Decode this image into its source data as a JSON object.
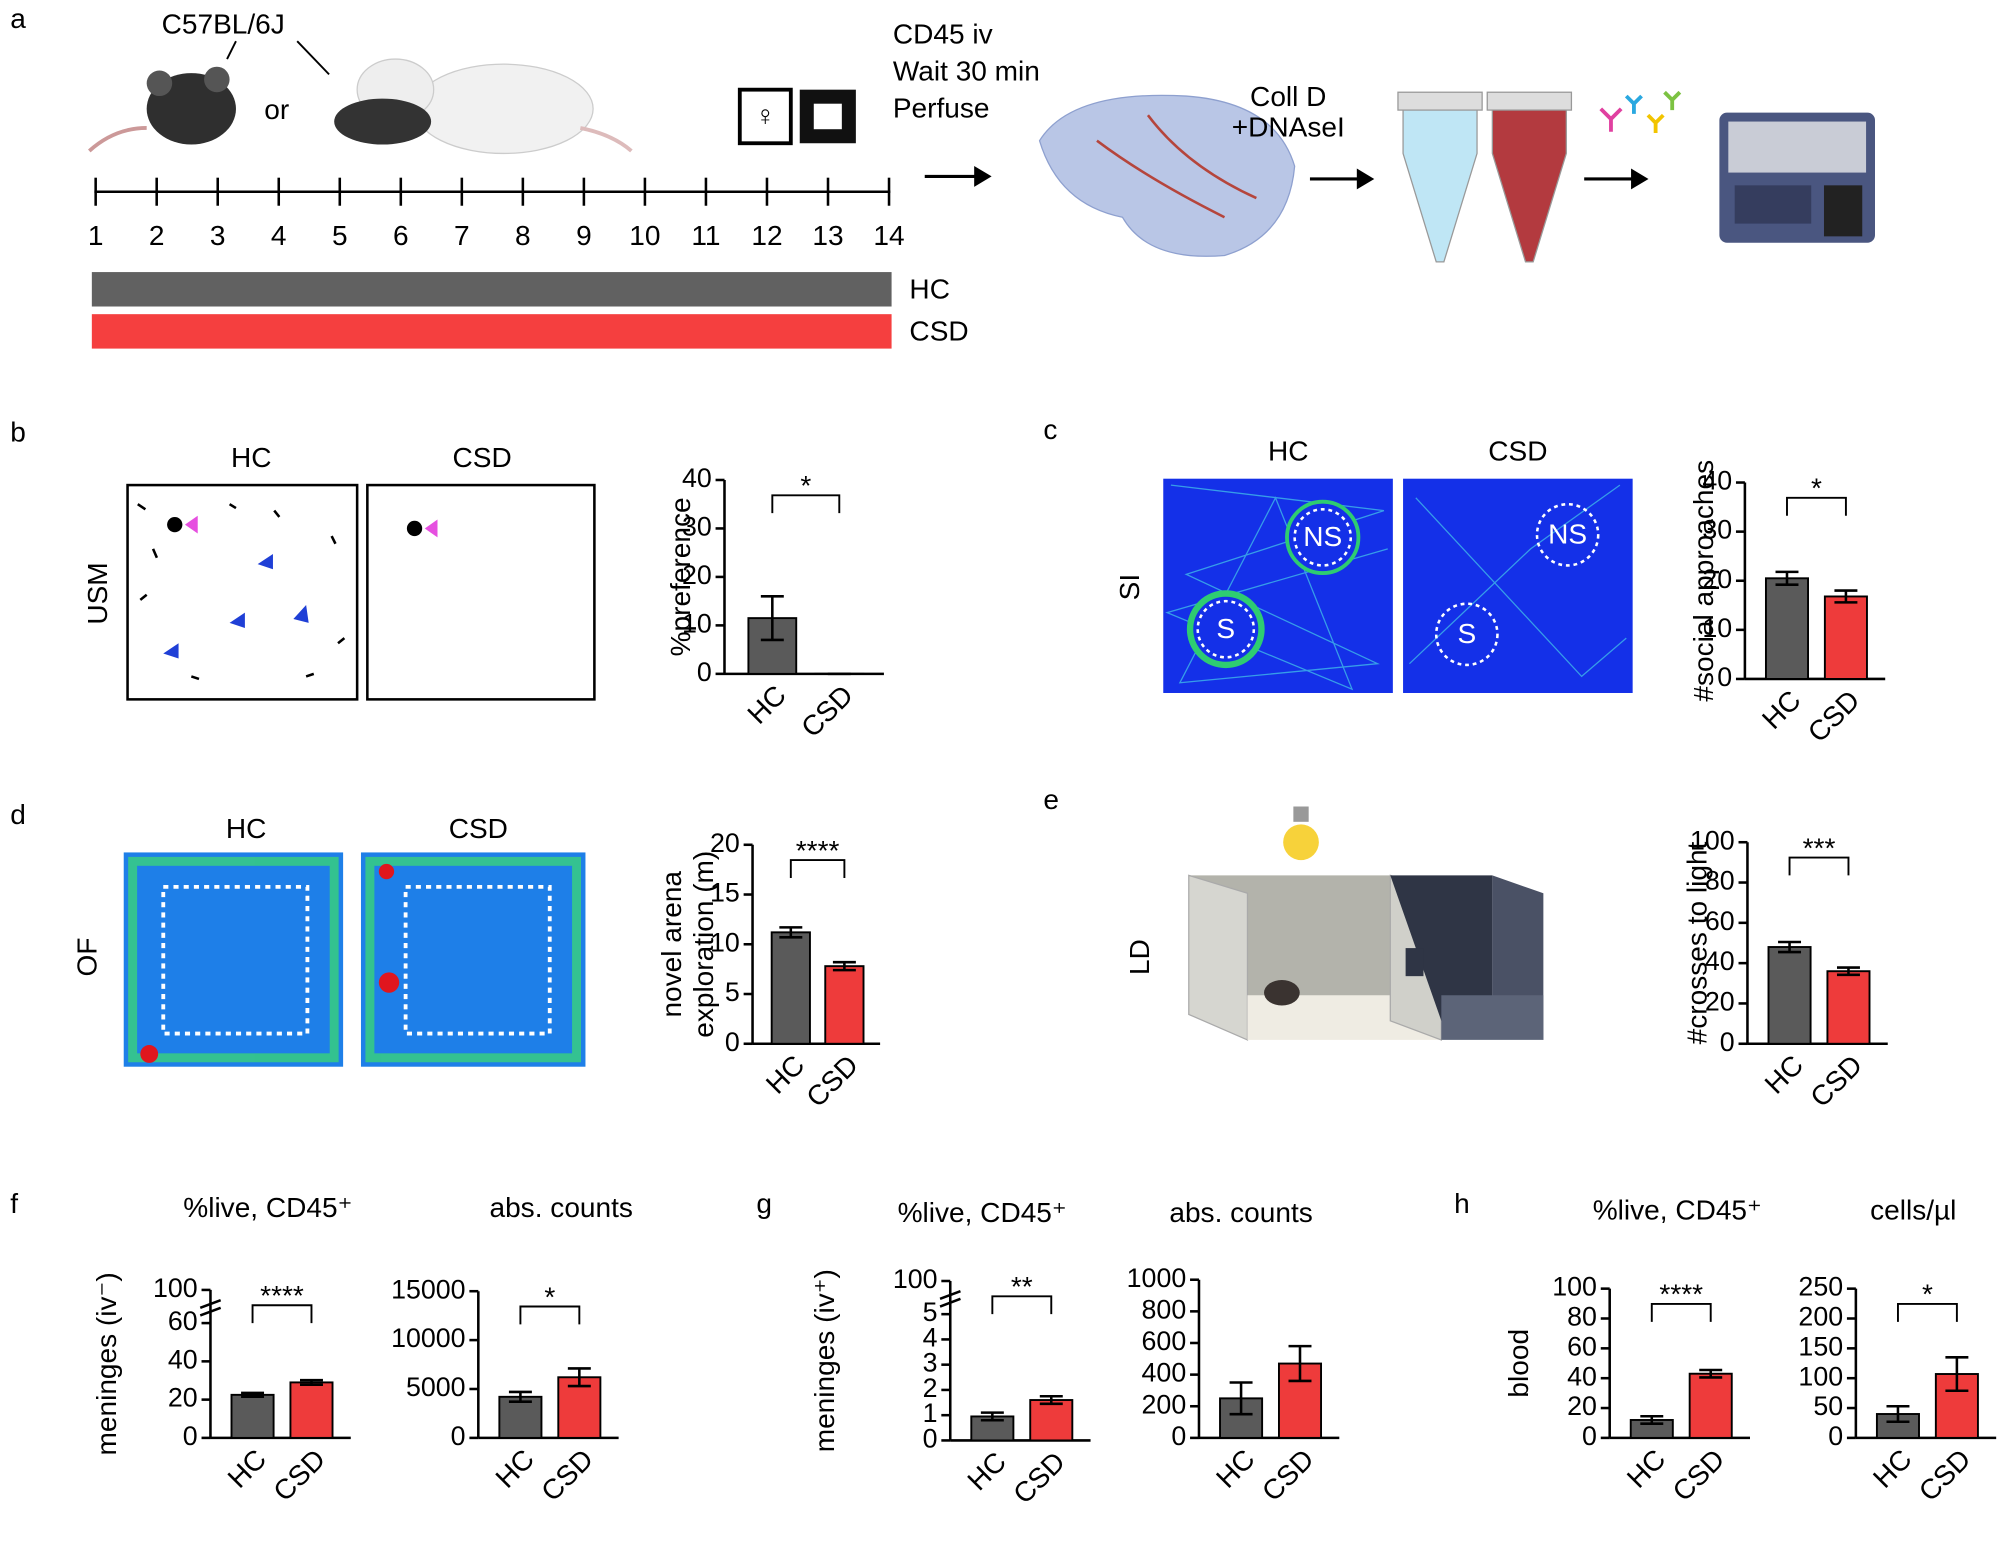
{
  "panel_labels": [
    "a",
    "b",
    "c",
    "d",
    "e",
    "f",
    "g",
    "h"
  ],
  "panel_a": {
    "strain": "C57BL/6J",
    "or": "or",
    "steps": [
      "CD45 iv",
      "Wait 30 min",
      "Perfuse"
    ],
    "digest": [
      "Coll D",
      "+DNAseI"
    ],
    "timeline": [
      1,
      2,
      3,
      4,
      5,
      6,
      7,
      8,
      9,
      10,
      11,
      12,
      13,
      14
    ],
    "groups": [
      {
        "name": "HC",
        "color": "#616161"
      },
      {
        "name": "CSD",
        "color": "#f53f3f"
      }
    ]
  },
  "panel_b": {
    "columns": [
      "HC",
      "CSD"
    ],
    "test": "USM"
  },
  "panel_c": {
    "columns": [
      "HC",
      "CSD"
    ],
    "test": "SI",
    "zones": [
      "NS",
      "S"
    ]
  },
  "panel_d": {
    "columns": [
      "HC",
      "CSD"
    ],
    "test": "OF"
  },
  "panel_e": {
    "test": "LD"
  },
  "chart_data": [
    {
      "type": "bar",
      "ylabel": "%preference",
      "categories": [
        "HC",
        "CSD"
      ],
      "values": [
        11.5,
        0
      ],
      "errors": [
        4.5,
        0
      ],
      "colors": [
        "#5a5a5a",
        "#ee3b3b"
      ],
      "ylim": [
        0,
        40
      ],
      "yticks": [
        0,
        10,
        20,
        30,
        40
      ],
      "significance": "*"
    },
    {
      "type": "bar",
      "ylabel": "#social approaches",
      "categories": [
        "HC",
        "CSD"
      ],
      "values": [
        20.5,
        16.8
      ],
      "errors": [
        1.3,
        1.2
      ],
      "colors": [
        "#5a5a5a",
        "#ee3b3b"
      ],
      "ylim": [
        0,
        40
      ],
      "yticks": [
        0,
        10,
        20,
        30,
        40
      ],
      "significance": "*"
    },
    {
      "type": "bar",
      "ylabel": [
        "novel arena",
        "exploration (m)"
      ],
      "categories": [
        "HC",
        "CSD"
      ],
      "values": [
        11.2,
        7.8
      ],
      "errors": [
        0.5,
        0.4
      ],
      "colors": [
        "#5a5a5a",
        "#ee3b3b"
      ],
      "ylim": [
        0,
        20
      ],
      "yticks": [
        0,
        5,
        10,
        15,
        20
      ],
      "significance": "****"
    },
    {
      "type": "bar",
      "ylabel": "#crosses to light",
      "categories": [
        "HC",
        "CSD"
      ],
      "values": [
        48,
        36
      ],
      "errors": [
        2.5,
        1.8
      ],
      "colors": [
        "#5a5a5a",
        "#ee3b3b"
      ],
      "ylim": [
        0,
        100
      ],
      "yticks": [
        0,
        20,
        40,
        60,
        80,
        100
      ],
      "significance": "***"
    },
    {
      "type": "bar",
      "title": "%live, CD45⁺",
      "ylabel": "meninges (iv⁻)",
      "categories": [
        "HC",
        "CSD"
      ],
      "values": [
        22.5,
        29
      ],
      "errors": [
        1,
        1.2
      ],
      "colors": [
        "#5a5a5a",
        "#ee3b3b"
      ],
      "ylim": [
        0,
        60
      ],
      "yticks": [
        0,
        20,
        40,
        60
      ],
      "break_label": "100",
      "significance": "****"
    },
    {
      "type": "bar",
      "title": "abs. counts",
      "categories": [
        "HC",
        "CSD"
      ],
      "values": [
        4200,
        6200
      ],
      "errors": [
        500,
        900
      ],
      "colors": [
        "#5a5a5a",
        "#ee3b3b"
      ],
      "ylim": [
        0,
        15000
      ],
      "yticks": [
        0,
        5000,
        10000,
        15000
      ],
      "significance": "*"
    },
    {
      "type": "bar",
      "title": "%live, CD45⁺",
      "ylabel": "meninges (iv⁺)",
      "categories": [
        "HC",
        "CSD"
      ],
      "values": [
        0.95,
        1.6
      ],
      "errors": [
        0.15,
        0.15
      ],
      "colors": [
        "#5a5a5a",
        "#ee3b3b"
      ],
      "ylim": [
        0,
        5
      ],
      "yticks": [
        0,
        1,
        2,
        3,
        4,
        5
      ],
      "break_label": "100",
      "significance": "**"
    },
    {
      "type": "bar",
      "title": "abs. counts",
      "categories": [
        "HC",
        "CSD"
      ],
      "values": [
        250,
        470
      ],
      "errors": [
        100,
        110
      ],
      "colors": [
        "#5a5a5a",
        "#ee3b3b"
      ],
      "ylim": [
        0,
        1000
      ],
      "yticks": [
        0,
        200,
        400,
        600,
        800,
        1000
      ]
    },
    {
      "type": "bar",
      "title": "%live, CD45⁺",
      "ylabel": "blood",
      "categories": [
        "HC",
        "CSD"
      ],
      "values": [
        12,
        43
      ],
      "errors": [
        2.5,
        2.5
      ],
      "colors": [
        "#5a5a5a",
        "#ee3b3b"
      ],
      "ylim": [
        0,
        100
      ],
      "yticks": [
        0,
        20,
        40,
        60,
        80,
        100
      ],
      "significance": "****"
    },
    {
      "type": "bar",
      "title": "cells/µl",
      "categories": [
        "HC",
        "CSD"
      ],
      "values": [
        40,
        107
      ],
      "errors": [
        13,
        28
      ],
      "colors": [
        "#5a5a5a",
        "#ee3b3b"
      ],
      "ylim": [
        0,
        250
      ],
      "yticks": [
        0,
        50,
        100,
        150,
        200,
        250
      ],
      "significance": "*"
    }
  ]
}
